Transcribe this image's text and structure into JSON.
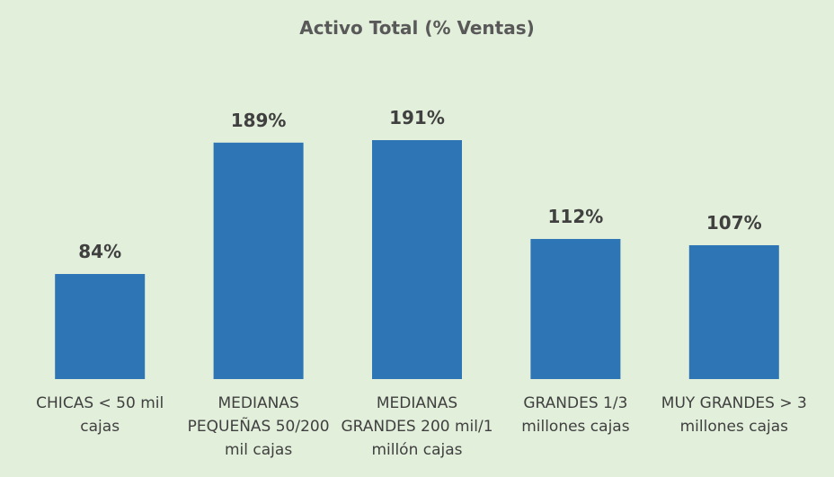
{
  "chart_data": {
    "type": "bar",
    "title": "Activo Total (% Ventas)",
    "categories": [
      "CHICAS < 50 mil cajas",
      "MEDIANAS PEQUEÑAS 50/200 mil cajas",
      "MEDIANAS GRANDES 200 mil/1 millón cajas",
      "GRANDES 1/3 millones cajas",
      "MUY GRANDES > 3 millones cajas"
    ],
    "values": [
      84,
      189,
      191,
      112,
      107
    ],
    "value_labels": [
      "84%",
      "189%",
      "191%",
      "112%",
      "107%"
    ],
    "color": "#2e75b6"
  }
}
